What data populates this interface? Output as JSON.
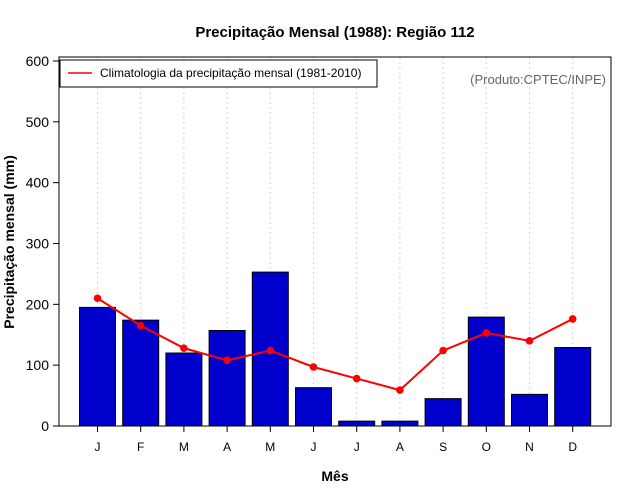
{
  "chart_data": {
    "type": "bar",
    "title": "Precipitação Mensal (1988): Região 112",
    "xlabel": "Mês",
    "ylabel": "Precipitação mensal (mm)",
    "ylim": [
      0,
      600
    ],
    "yticks": [
      0,
      100,
      200,
      300,
      400,
      500,
      600
    ],
    "categories": [
      "J",
      "F",
      "M",
      "A",
      "M",
      "J",
      "J",
      "A",
      "S",
      "O",
      "N",
      "D"
    ],
    "series": [
      {
        "name": "Precipitação mensal (1988)",
        "type": "bar",
        "color": "#0000cc",
        "values": [
          195,
          174,
          120,
          157,
          253,
          63,
          8,
          8,
          45,
          179,
          52,
          129
        ]
      },
      {
        "name": "Climatologia da precipitação mensal (1981-2010)",
        "type": "line",
        "color": "#ff0000",
        "values": [
          210,
          165,
          128,
          108,
          124,
          97,
          78,
          59,
          124,
          153,
          140,
          176
        ]
      }
    ],
    "legend": {
      "position": "top-left",
      "entries": [
        "Climatologia da precipitação mensal (1981-2010)"
      ]
    },
    "credit": "(Produto:CPTEC/INPE)",
    "grid": "vertical-dotted"
  }
}
